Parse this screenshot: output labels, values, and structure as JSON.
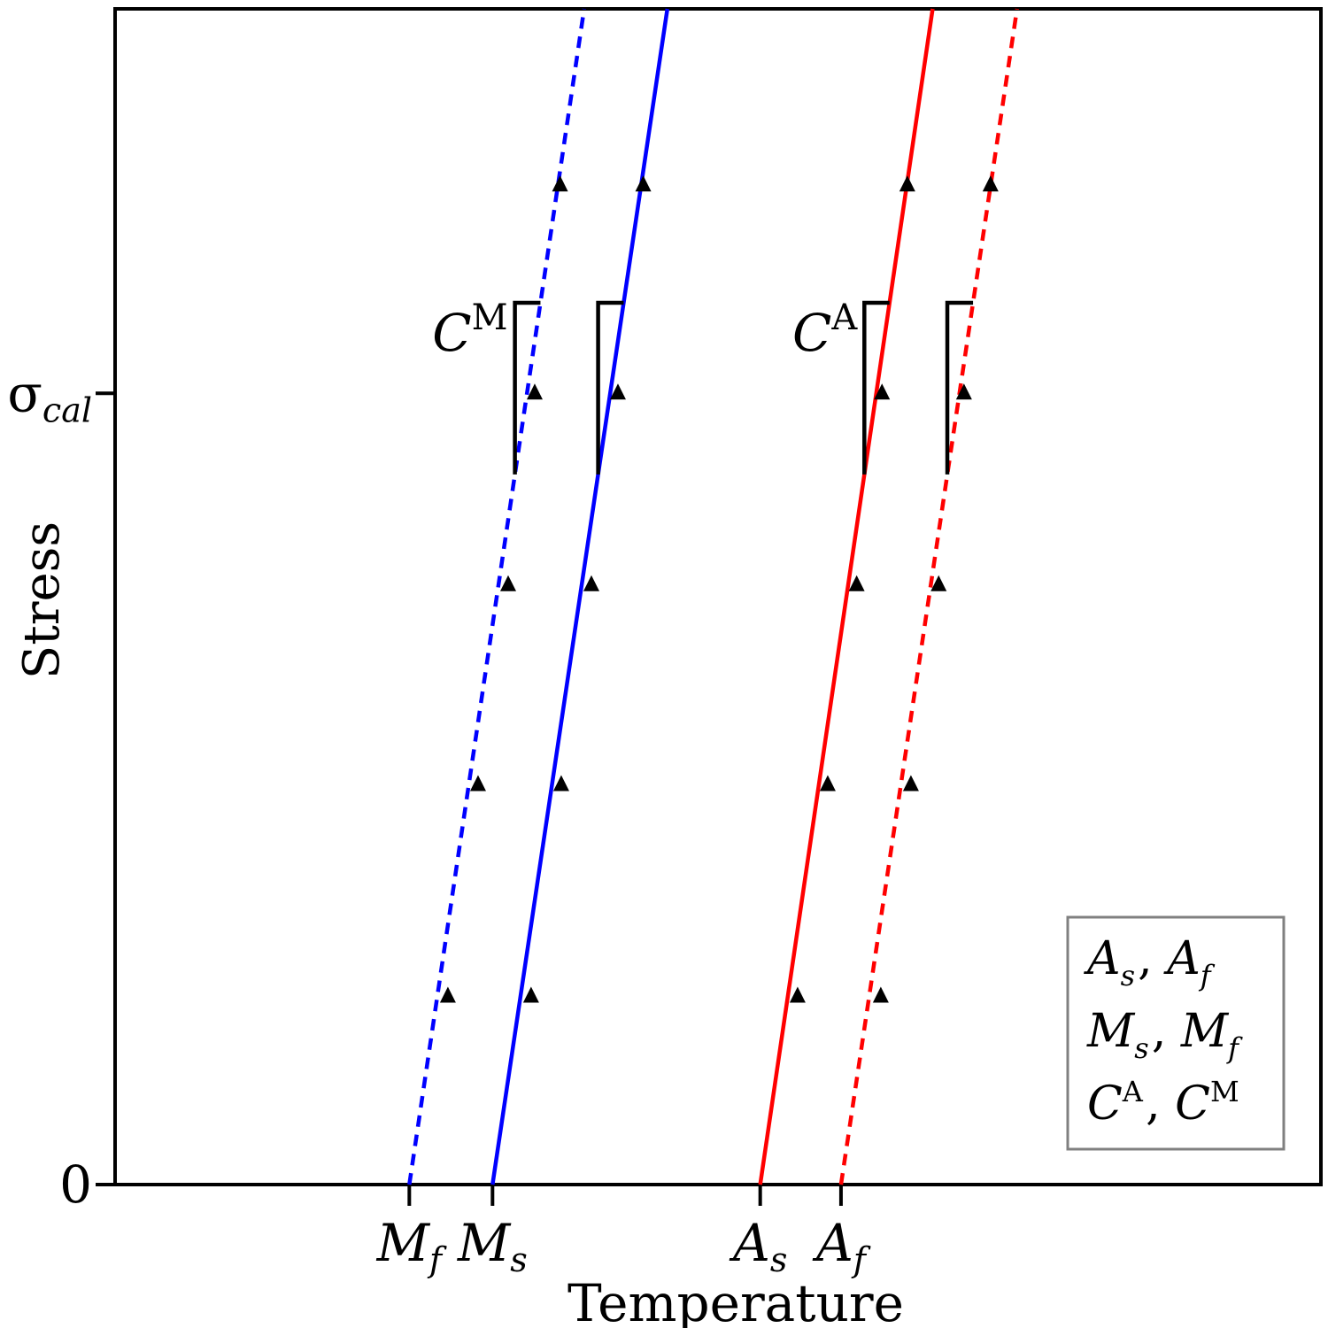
{
  "chart_data": {
    "type": "line",
    "title": "",
    "xlabel": "Temperature",
    "ylabel": "Stress",
    "xlim": [
      0,
      100
    ],
    "ylim": [
      0,
      100
    ],
    "grid": false,
    "y_ticks": [
      {
        "value": 0,
        "label": "0"
      },
      {
        "value": 67.3,
        "label": "σ",
        "sub": "cal"
      }
    ],
    "x_ticks": [
      {
        "value": 24.4,
        "label": "M",
        "sub": "f"
      },
      {
        "value": 31.3,
        "label": "M",
        "sub": "s"
      },
      {
        "value": 53.5,
        "label": "A",
        "sub": "s"
      },
      {
        "value": 60.2,
        "label": "A",
        "sub": "f"
      }
    ],
    "series": [
      {
        "key": "Mf",
        "color": "#0000ff",
        "dash": "dashed",
        "line": [
          [
            24.4,
            0
          ],
          [
            38.9,
            100
          ]
        ],
        "markers": [
          [
            27.6,
            16
          ],
          [
            30.1,
            34
          ],
          [
            32.6,
            51
          ],
          [
            34.8,
            67.3
          ],
          [
            36.9,
            85
          ]
        ]
      },
      {
        "key": "Ms",
        "color": "#0000ff",
        "dash": "solid",
        "line": [
          [
            31.3,
            0
          ],
          [
            45.8,
            100
          ]
        ],
        "markers": [
          [
            34.5,
            16
          ],
          [
            37.0,
            34
          ],
          [
            39.5,
            51
          ],
          [
            41.7,
            67.3
          ],
          [
            43.8,
            85
          ]
        ]
      },
      {
        "key": "As",
        "color": "#ff0000",
        "dash": "solid",
        "line": [
          [
            53.5,
            0
          ],
          [
            67.8,
            100
          ]
        ],
        "markers": [
          [
            56.6,
            16
          ],
          [
            59.1,
            34
          ],
          [
            61.5,
            51
          ],
          [
            63.6,
            67.3
          ],
          [
            65.7,
            85
          ]
        ]
      },
      {
        "key": "Af",
        "color": "#ff0000",
        "dash": "dashed",
        "line": [
          [
            60.2,
            0
          ],
          [
            74.8,
            100
          ]
        ],
        "markers": [
          [
            63.5,
            16
          ],
          [
            66.0,
            34
          ],
          [
            68.3,
            51
          ],
          [
            70.4,
            67.3
          ],
          [
            72.6,
            85
          ]
        ]
      }
    ],
    "slope_annotations": [
      {
        "label": "C",
        "sup": "M",
        "attach": "Mf",
        "show_label": true
      },
      {
        "label": "",
        "sup": "",
        "attach": "Ms",
        "show_label": false
      },
      {
        "label": "C",
        "sup": "A",
        "attach": "As",
        "show_label": true
      },
      {
        "label": "",
        "sup": "",
        "attach": "Af",
        "show_label": false
      }
    ],
    "legend": {
      "position": "bottom-right",
      "rows": [
        [
          {
            "b": "A",
            "sub": "s"
          },
          {
            "b": "A",
            "sub": "f"
          }
        ],
        [
          {
            "b": "M",
            "sub": "s"
          },
          {
            "b": "M",
            "sub": "f"
          }
        ],
        [
          {
            "b": "C",
            "sup": "A"
          },
          {
            "b": "C",
            "sup": "M"
          }
        ]
      ]
    }
  }
}
